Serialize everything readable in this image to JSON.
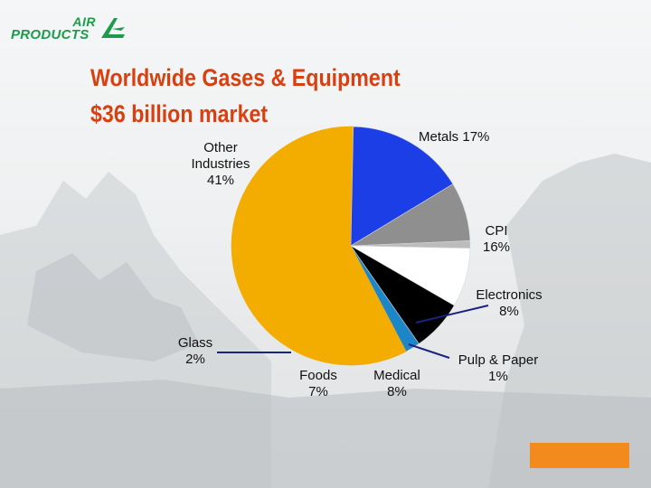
{
  "colors": {
    "title": "#d9400f",
    "accent_box": "#f28a1e",
    "logo": "#1e9b4a"
  },
  "logo": {
    "line1": "AIR",
    "line2": "PRODUCTS",
    "icon": "air-products-logo-icon"
  },
  "title": {
    "line1": "Worldwide Gases & Equipment",
    "line2": "$36 billion market"
  },
  "chart_data": {
    "type": "pie",
    "title": "",
    "unit": "%",
    "slices": [
      {
        "label": "Metals",
        "value": 17,
        "display": "Metals 17%",
        "color": "#f2ad00"
      },
      {
        "label": "CPI",
        "value": 16,
        "display_line1": "CPI",
        "display_line2": "16%",
        "color": "#1c3ee6"
      },
      {
        "label": "Electronics",
        "value": 8,
        "display_line1": "Electronics",
        "display_line2": "8%",
        "color": "#8f8f8f"
      },
      {
        "label": "Pulp & Paper",
        "value": 1,
        "display_line1": "Pulp & Paper",
        "display_line2": "1%",
        "color": "#bcbcbc"
      },
      {
        "label": "Medical",
        "value": 8,
        "display_line1": "Medical",
        "display_line2": "8%",
        "color": "#ffffff"
      },
      {
        "label": "Foods",
        "value": 7,
        "display_line1": "Foods",
        "display_line2": "7%",
        "color": "#000000"
      },
      {
        "label": "Glass",
        "value": 2,
        "display_line1": "Glass",
        "display_line2": "2%",
        "color": "#1d86c8"
      },
      {
        "label": "Other Industries",
        "value": 41,
        "display_line1": "Other",
        "display_line2": "Industries",
        "display_line3": "41%",
        "color": "#f2ad00"
      }
    ]
  }
}
